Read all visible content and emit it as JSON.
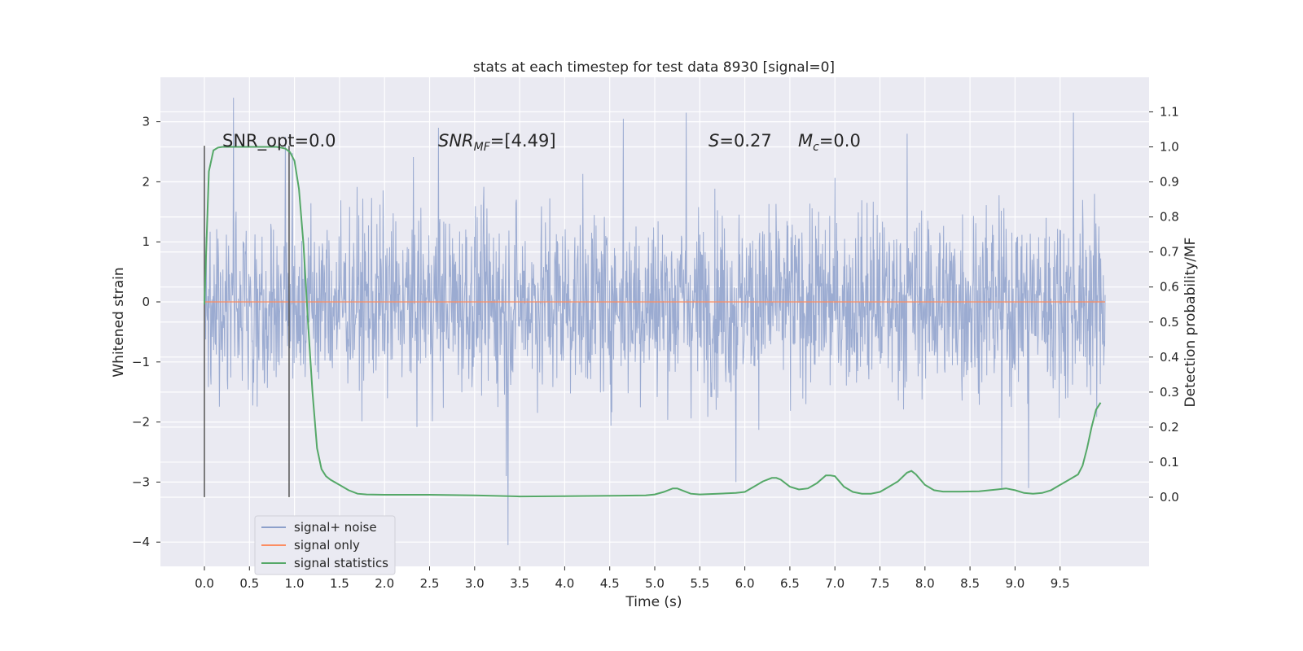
{
  "chart_data": {
    "type": "line",
    "title": "stats at each timestep for test data 8930 [signal=0]",
    "xlabel": "Time (s)",
    "ylabel": "Whitened strain",
    "y2label": "Detection probability/MF",
    "xlim": [
      -0.5,
      10.5
    ],
    "ylim": [
      -4.45,
      3.7
    ],
    "y2lim": [
      -0.2,
      1.2
    ],
    "xticks": [
      0.0,
      0.5,
      1.0,
      1.5,
      2.0,
      2.5,
      3.0,
      3.5,
      4.0,
      4.5,
      5.0,
      5.5,
      6.0,
      6.5,
      7.0,
      7.5,
      8.0,
      8.5,
      9.0,
      9.5
    ],
    "xtick_labels": [
      "0.0",
      "0.5",
      "1.0",
      "1.5",
      "2.0",
      "2.5",
      "3.0",
      "3.5",
      "4.0",
      "4.5",
      "5.0",
      "5.5",
      "6.0",
      "6.5",
      "7.0",
      "7.5",
      "8.0",
      "8.5",
      "9.0",
      "9.5"
    ],
    "yticks": [
      3,
      2,
      1,
      0,
      -1,
      -2,
      -3,
      -4
    ],
    "ytick_labels": [
      "3",
      "2",
      "1",
      "0",
      "−1",
      "−2",
      "−3",
      "−4"
    ],
    "y2ticks": [
      1.1,
      1.0,
      0.9,
      0.8,
      0.7,
      0.6,
      0.5,
      0.4,
      0.3,
      0.2,
      0.1,
      0.0
    ],
    "y2tick_labels": [
      "1.1",
      "1.0",
      "0.9",
      "0.8",
      "0.7",
      "0.6",
      "0.5",
      "0.4",
      "0.3",
      "0.2",
      "0.1",
      "0.0"
    ],
    "grid": true,
    "legend_position": "lower-left",
    "annotations": {
      "snr_opt": "SNR_opt=0.0",
      "snr_mf_var": "SNR",
      "snr_mf_sub": "MF",
      "snr_mf_val": "=[4.49]",
      "s_var": "S",
      "s_val": "=0.27",
      "mc_var": "M",
      "mc_sub": "c",
      "mc_val": "=0.0"
    },
    "vlines": [
      0.0,
      0.94
    ],
    "vline_range": [
      -3.25,
      2.6
    ],
    "series": [
      {
        "name": "signal+ noise",
        "color": "#8da0cb",
        "axis": "left",
        "x_range": [
          0.0,
          10.0
        ],
        "n_samples": 2048,
        "band": 1.3,
        "spikes": [
          [
            0.32,
            3.4
          ],
          [
            3.37,
            -4.05
          ],
          [
            5.35,
            3.15
          ],
          [
            9.65,
            3.15
          ],
          [
            4.65,
            3.05
          ],
          [
            2.6,
            2.9
          ],
          [
            8.85,
            -3.1
          ],
          [
            0.9,
            2.75
          ],
          [
            5.9,
            -3.0
          ],
          [
            7.8,
            2.8
          ],
          [
            3.35,
            -2.9
          ],
          [
            9.15,
            -3.1
          ]
        ]
      },
      {
        "name": "signal only",
        "color": "#fc8d62",
        "axis": "left",
        "x": [
          0.0,
          10.0
        ],
        "y": [
          0.0,
          0.0
        ]
      },
      {
        "name": "signal statistics",
        "color": "#55a868",
        "axis": "right",
        "x": [
          0.0,
          0.05,
          0.1,
          0.15,
          0.2,
          0.3,
          0.5,
          0.7,
          0.8,
          0.85,
          0.9,
          0.95,
          1.0,
          1.05,
          1.1,
          1.15,
          1.2,
          1.25,
          1.3,
          1.35,
          1.4,
          1.5,
          1.6,
          1.7,
          1.8,
          2.0,
          2.5,
          3.0,
          3.5,
          4.0,
          4.5,
          4.9,
          5.0,
          5.1,
          5.2,
          5.25,
          5.3,
          5.4,
          5.5,
          5.7,
          5.9,
          6.0,
          6.1,
          6.2,
          6.3,
          6.35,
          6.4,
          6.5,
          6.6,
          6.7,
          6.8,
          6.9,
          6.95,
          7.0,
          7.1,
          7.2,
          7.3,
          7.4,
          7.5,
          7.6,
          7.7,
          7.8,
          7.85,
          7.9,
          8.0,
          8.1,
          8.2,
          8.4,
          8.6,
          8.8,
          8.9,
          9.0,
          9.1,
          9.2,
          9.3,
          9.4,
          9.5,
          9.6,
          9.7,
          9.75,
          9.8,
          9.85,
          9.9,
          9.95
        ],
        "y": [
          0.55,
          0.93,
          0.99,
          0.998,
          1.0,
          1.0,
          1.0,
          1.0,
          1.0,
          0.998,
          0.995,
          0.985,
          0.96,
          0.88,
          0.72,
          0.5,
          0.3,
          0.14,
          0.08,
          0.06,
          0.05,
          0.035,
          0.02,
          0.01,
          0.008,
          0.007,
          0.007,
          0.005,
          0.002,
          0.003,
          0.004,
          0.005,
          0.008,
          0.015,
          0.025,
          0.025,
          0.02,
          0.01,
          0.008,
          0.01,
          0.012,
          0.015,
          0.03,
          0.045,
          0.055,
          0.055,
          0.05,
          0.03,
          0.022,
          0.025,
          0.04,
          0.062,
          0.062,
          0.06,
          0.03,
          0.015,
          0.01,
          0.01,
          0.015,
          0.03,
          0.045,
          0.07,
          0.075,
          0.065,
          0.035,
          0.02,
          0.016,
          0.016,
          0.017,
          0.022,
          0.025,
          0.02,
          0.012,
          0.01,
          0.012,
          0.02,
          0.035,
          0.05,
          0.065,
          0.09,
          0.14,
          0.2,
          0.25,
          0.27
        ]
      }
    ]
  }
}
